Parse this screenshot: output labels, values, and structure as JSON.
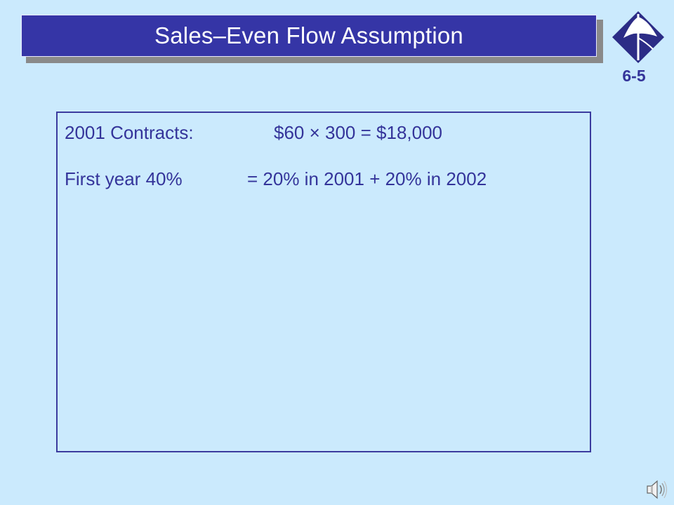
{
  "slide": {
    "title": "Sales–Even Flow Assumption",
    "number": "6-5"
  },
  "content": {
    "line1_label": "2001 Contracts:",
    "line1_value": "$60 × 300 = $18,000",
    "line2_label": "First year 40%",
    "line2_value": "= 20% in 2001 + 20% in 2002"
  },
  "icons": {
    "logo": "diamond-logo-icon",
    "speaker": "speaker-icon"
  },
  "colors": {
    "background": "#cbeafd",
    "title_bar": "#3535a6",
    "text": "#34349a"
  }
}
